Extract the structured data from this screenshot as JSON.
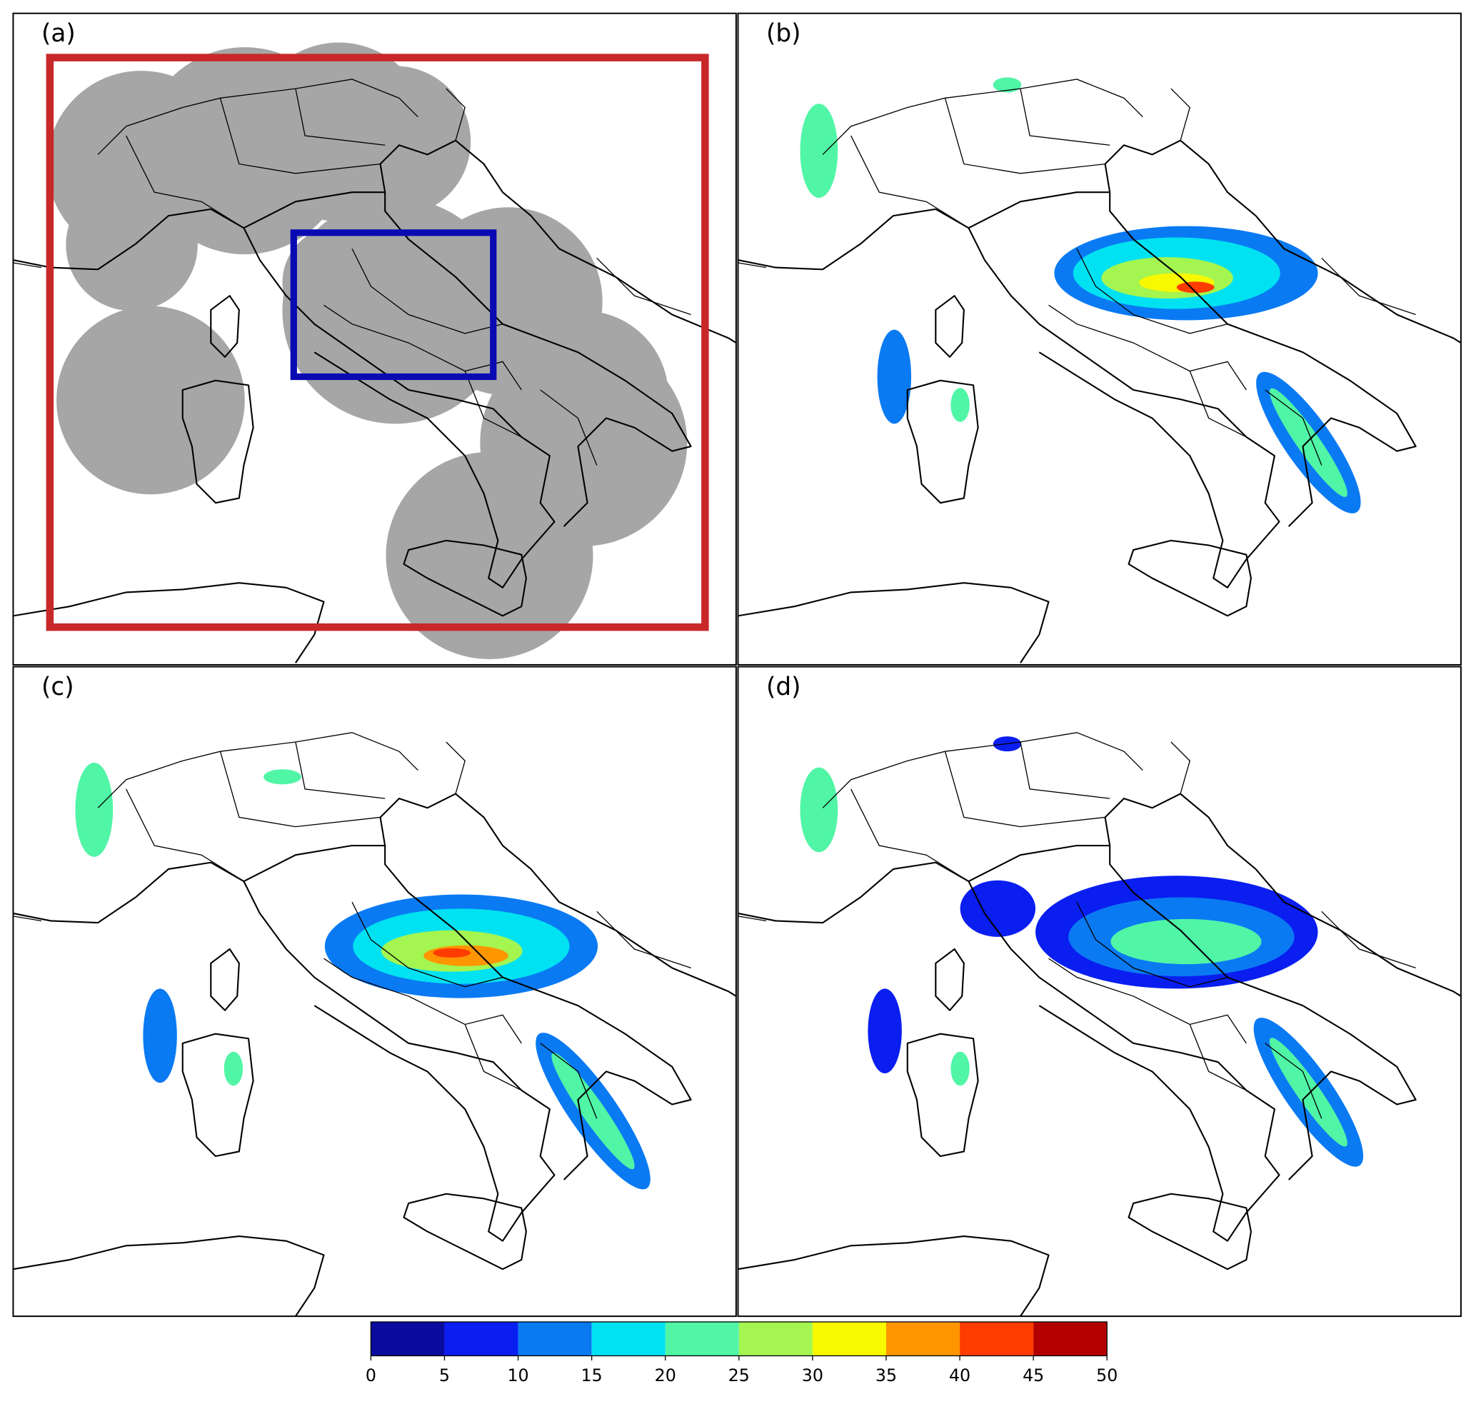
{
  "panels": [
    {
      "label": "(a)"
    },
    {
      "label": "(b)"
    },
    {
      "label": "(c)"
    },
    {
      "label": "(d)"
    }
  ],
  "colorbar": {
    "ticks": [
      0,
      5,
      10,
      15,
      20,
      25,
      30,
      35,
      40,
      45,
      50
    ],
    "colors": [
      "#0a0a9e",
      "#0a1ef0",
      "#0a7af2",
      "#00e2f2",
      "#50f5a6",
      "#a4f550",
      "#f8f800",
      "#ff9600",
      "#ff3c00",
      "#b40000"
    ]
  }
}
